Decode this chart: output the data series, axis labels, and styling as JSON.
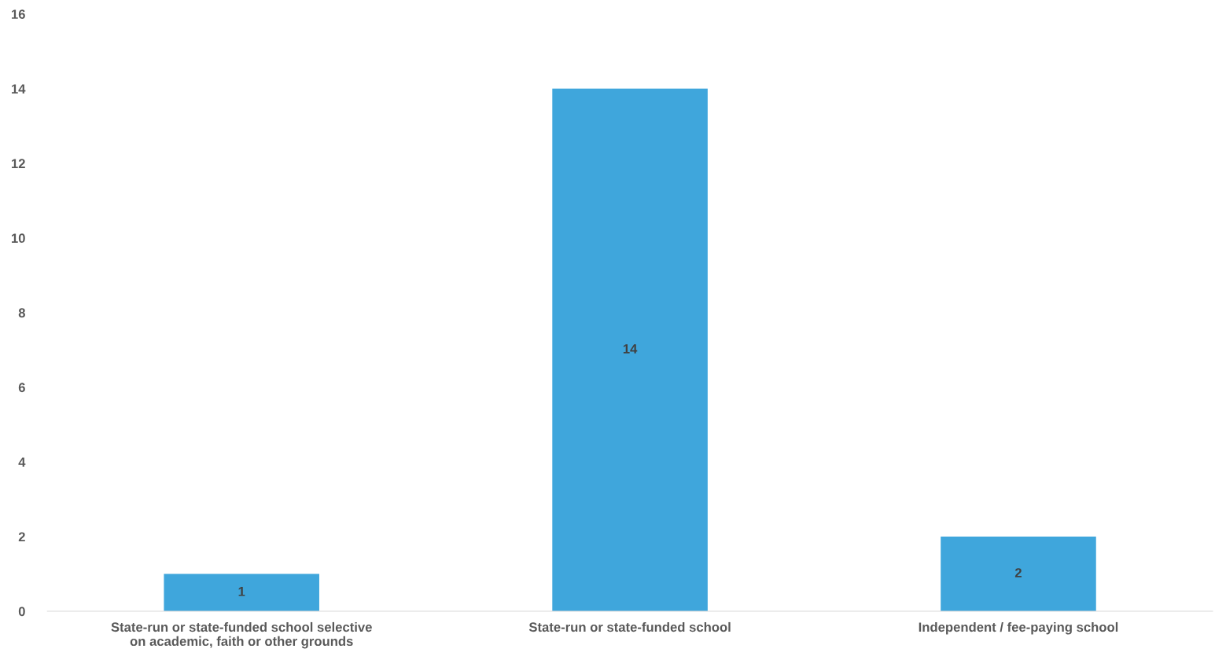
{
  "chart_data": {
    "type": "bar",
    "categories": [
      "State-run or state-funded school selective on academic, faith or other grounds",
      "State-run or state-funded school",
      "Independent / fee-paying school"
    ],
    "values": [
      1,
      14,
      2
    ],
    "color": "#3fa6dc",
    "ylim": [
      0,
      16
    ],
    "yticks": [
      0,
      2,
      4,
      6,
      8,
      10,
      12,
      14,
      16
    ],
    "data_labels": true,
    "grid": false,
    "legend": false
  }
}
